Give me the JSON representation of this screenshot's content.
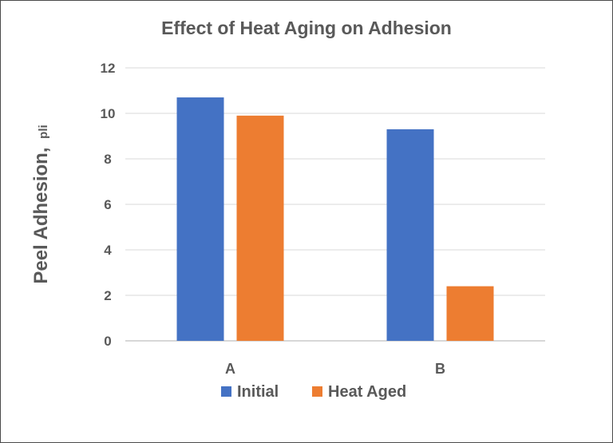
{
  "chart_data": {
    "type": "bar",
    "title": "Effect of Heat Aging on Adhesion",
    "ylabel": "Peel Adhesion,",
    "ylabel_unit": "pli",
    "xlabel": "",
    "categories": [
      "A",
      "B"
    ],
    "series": [
      {
        "name": "Initial",
        "color": "#4472C4",
        "values": [
          10.7,
          9.3
        ]
      },
      {
        "name": "Heat Aged",
        "color": "#ED7D31",
        "values": [
          9.9,
          2.4
        ]
      }
    ],
    "ylim": [
      0,
      12
    ],
    "yticks": [
      0,
      2,
      4,
      6,
      8,
      10,
      12
    ],
    "grid": true,
    "legend_position": "bottom"
  }
}
